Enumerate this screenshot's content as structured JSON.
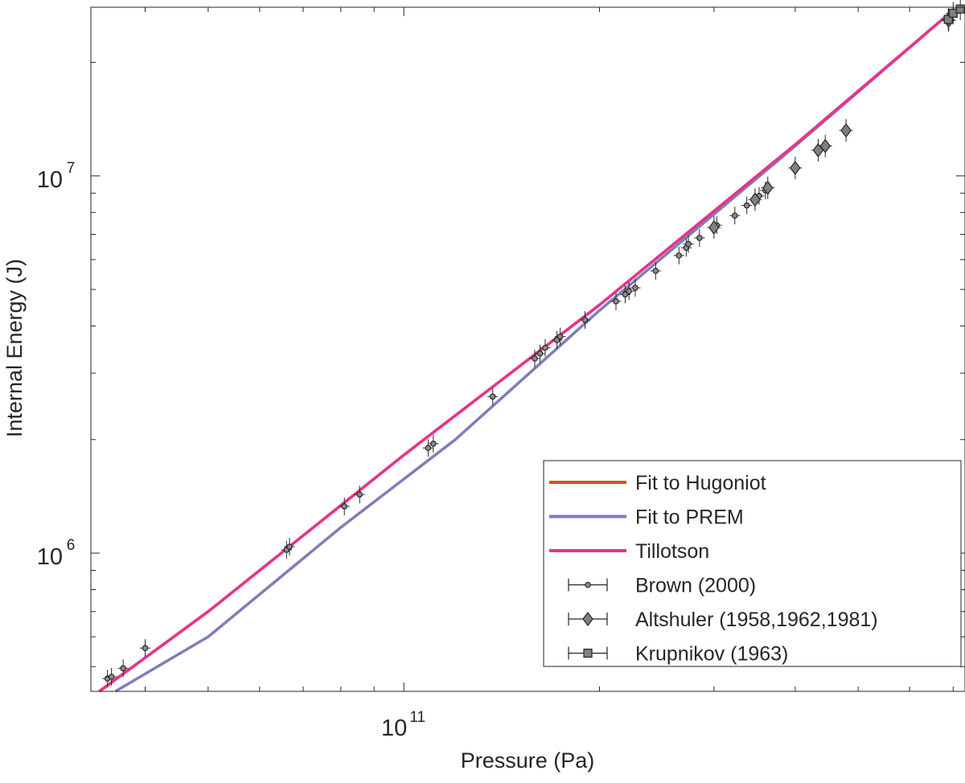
{
  "chart_data": {
    "type": "scatter",
    "xscale": "log",
    "yscale": "log",
    "xlim": [
      33000000000,
      730000000000
    ],
    "ylim": [
      430000,
      28000000
    ],
    "xlabel": "Pressure (Pa)",
    "ylabel": "Internal Energy (J)",
    "xtick_labels": [
      {
        "value": 100000000000,
        "base": "10",
        "exp": "11"
      }
    ],
    "ytick_labels": [
      {
        "value": 1000000,
        "base": "10",
        "exp": "6"
      },
      {
        "value": 10000000,
        "base": "10",
        "exp": "7"
      }
    ],
    "legend_position": "bottom-right",
    "lines": [
      {
        "name": "Fit to Hugoniot",
        "color": "#D95319",
        "x": [
          34000000000,
          50000000000,
          100000000000,
          200000000000,
          400000000000,
          700000000000
        ],
        "y": [
          430000,
          700000,
          1820000,
          4550000,
          12100000,
          27500000
        ]
      },
      {
        "name": "Fit to PREM",
        "color": "#7E7EB8",
        "x": [
          36000000000,
          50000000000,
          80000000000,
          120000000000,
          200000000000,
          400000000000,
          700000000000
        ],
        "y": [
          430000,
          600000,
          1170000,
          2000000,
          4400000,
          12000000,
          27500000
        ]
      },
      {
        "name": "Tillotson",
        "color": "#E8338B",
        "x": [
          34000000000,
          50000000000,
          100000000000,
          200000000000,
          400000000000,
          700000000000
        ],
        "y": [
          430000,
          700000,
          1820000,
          4550000,
          12100000,
          27500000
        ]
      }
    ],
    "series": [
      {
        "name": "Brown (2000)",
        "marker": "circle",
        "points": [
          {
            "x": 35000000000,
            "y": 465000
          },
          {
            "x": 35500000000,
            "y": 470000
          },
          {
            "x": 37000000000,
            "y": 495000
          },
          {
            "x": 40000000000,
            "y": 560000
          },
          {
            "x": 66000000000,
            "y": 1020000
          },
          {
            "x": 66700000000,
            "y": 1040000
          },
          {
            "x": 81000000000,
            "y": 1330000
          },
          {
            "x": 85500000000,
            "y": 1430000
          },
          {
            "x": 109000000000,
            "y": 1900000
          },
          {
            "x": 111000000000,
            "y": 1950000
          },
          {
            "x": 137000000000,
            "y": 2600000
          },
          {
            "x": 159000000000,
            "y": 3280000
          },
          {
            "x": 162000000000,
            "y": 3380000
          },
          {
            "x": 165000000000,
            "y": 3500000
          },
          {
            "x": 172000000000,
            "y": 3670000
          },
          {
            "x": 174000000000,
            "y": 3750000
          },
          {
            "x": 190000000000,
            "y": 4150000
          },
          {
            "x": 212000000000,
            "y": 4650000
          },
          {
            "x": 219000000000,
            "y": 4850000
          },
          {
            "x": 222000000000,
            "y": 4950000
          },
          {
            "x": 227000000000,
            "y": 5050000
          },
          {
            "x": 244000000000,
            "y": 5600000
          },
          {
            "x": 265000000000,
            "y": 6150000
          },
          {
            "x": 272000000000,
            "y": 6450000
          },
          {
            "x": 274000000000,
            "y": 6600000
          },
          {
            "x": 285000000000,
            "y": 6850000
          },
          {
            "x": 303000000000,
            "y": 7400000
          },
          {
            "x": 323000000000,
            "y": 7850000
          },
          {
            "x": 337000000000,
            "y": 8350000
          },
          {
            "x": 352000000000,
            "y": 8850000
          },
          {
            "x": 360000000000,
            "y": 9150000
          }
        ]
      },
      {
        "name": "Altshuler (1958,1962,1981)",
        "marker": "diamond",
        "points": [
          {
            "x": 300000000000,
            "y": 7300000
          },
          {
            "x": 347000000000,
            "y": 8650000
          },
          {
            "x": 363000000000,
            "y": 9300000
          },
          {
            "x": 400000000000,
            "y": 10500000
          },
          {
            "x": 434000000000,
            "y": 11700000
          },
          {
            "x": 445000000000,
            "y": 12000000
          },
          {
            "x": 479000000000,
            "y": 13200000
          },
          {
            "x": 689000000000,
            "y": 25800000
          }
        ]
      },
      {
        "name": "Krupnikov (1963)",
        "marker": "square",
        "points": [
          {
            "x": 688000000000,
            "y": 26000000
          },
          {
            "x": 700000000000,
            "y": 27000000
          },
          {
            "x": 718000000000,
            "y": 27700000
          }
        ]
      }
    ]
  }
}
